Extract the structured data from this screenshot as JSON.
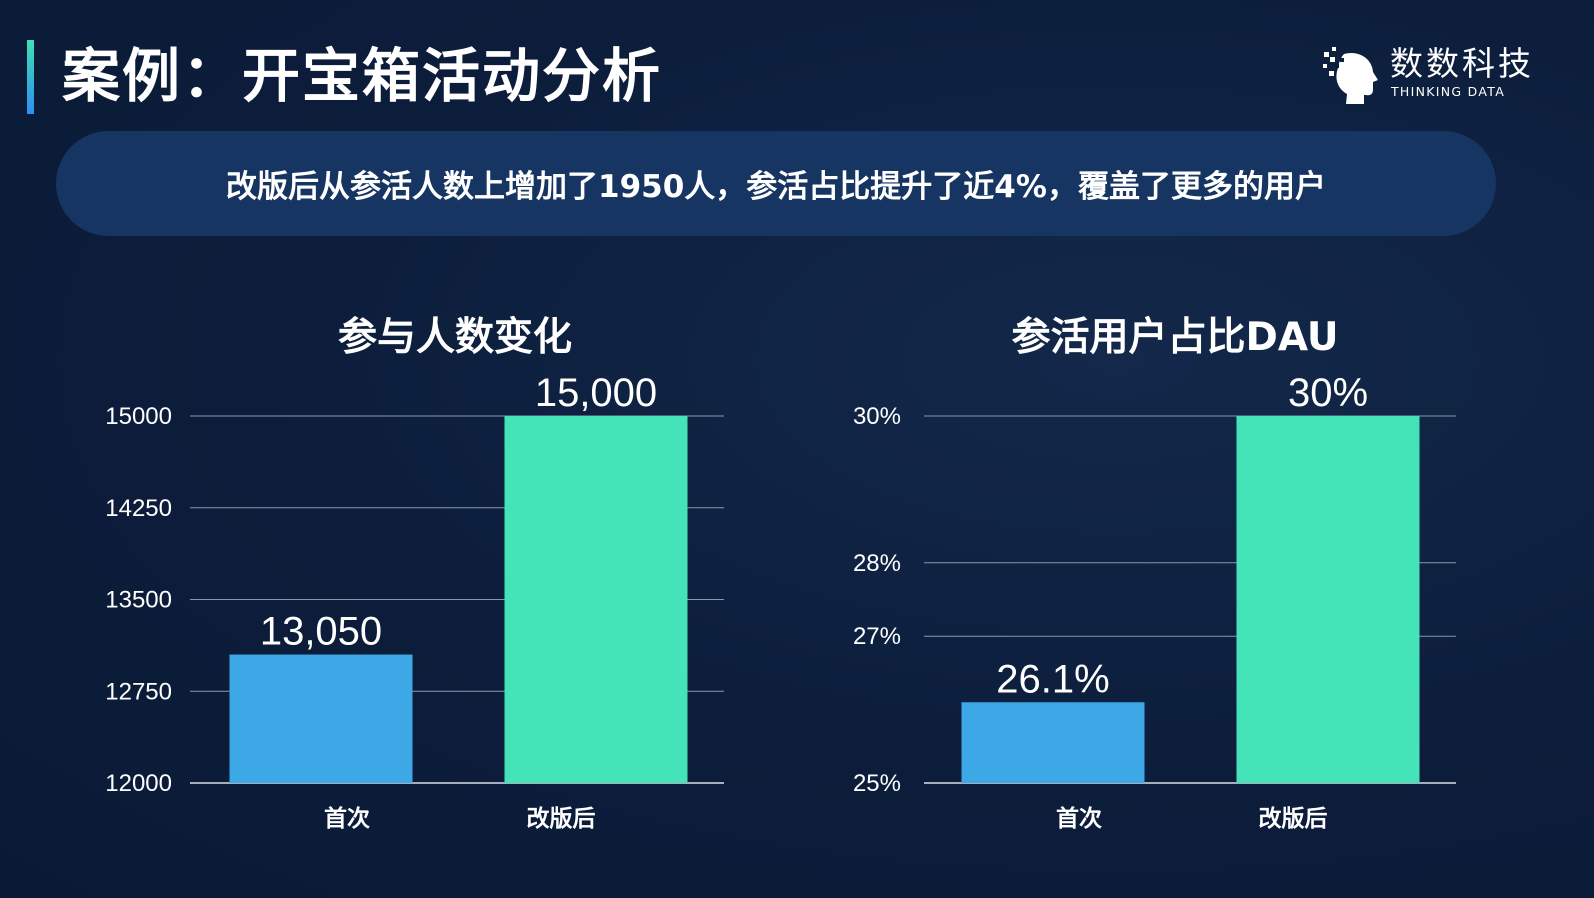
{
  "header": {
    "title": "案例：开宝箱活动分析",
    "logo_cn": "数数科技",
    "logo_en": "THINKING DATA",
    "logo_icon": "head-network-icon"
  },
  "summary": "改版后从参活人数上增加了1950人，参活占比提升了近4%，覆盖了更多的用户",
  "colors": {
    "first": "#3da8e6",
    "after": "#44e3b8",
    "background": "#0c1d3b",
    "banner": "#163563"
  },
  "chart_data": [
    {
      "type": "bar",
      "title": "参与人数变化",
      "categories": [
        "首次",
        "改版后"
      ],
      "values": [
        13050,
        15000
      ],
      "data_labels": [
        "13,050",
        "15,000"
      ],
      "ylim": [
        12000,
        15000
      ],
      "yticks": [
        12000,
        12750,
        13500,
        14250,
        15000
      ],
      "ytick_labels": [
        "12000",
        "12750",
        "13500",
        "14250",
        "15000"
      ],
      "grid": true,
      "legend": "none"
    },
    {
      "type": "bar",
      "title": "参活用户占比DAU",
      "categories": [
        "首次",
        "改版后"
      ],
      "values": [
        26.1,
        30
      ],
      "data_labels": [
        "26.1%",
        "30%"
      ],
      "ylim": [
        25,
        30
      ],
      "yticks": [
        25,
        27,
        28,
        30
      ],
      "ytick_labels": [
        "25%",
        "27%",
        "28%",
        "30%"
      ],
      "grid": true,
      "legend": "none"
    }
  ]
}
